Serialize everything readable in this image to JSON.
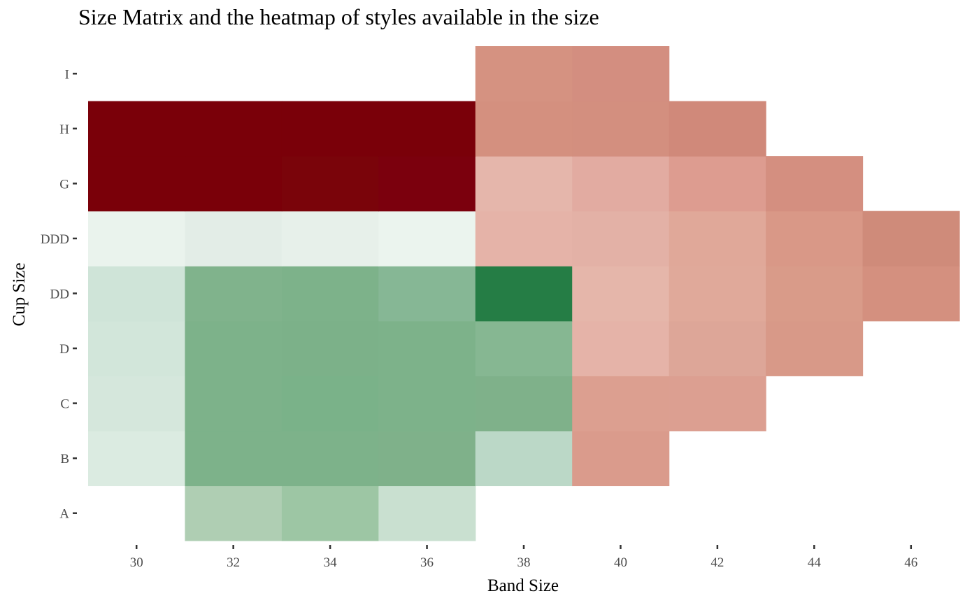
{
  "chart_data": {
    "type": "heatmap",
    "title": "Size Matrix and the heatmap of styles available in the size",
    "xlabel": "Band Size",
    "ylabel": "Cup Size",
    "x_categories": [
      30,
      32,
      34,
      36,
      38,
      40,
      42,
      44,
      46
    ],
    "y_categories": [
      "A",
      "B",
      "C",
      "D",
      "DD",
      "DDD",
      "G",
      "H",
      "I"
    ],
    "grid": false,
    "legend": "none",
    "colors": {
      "low_red": "#e6b6ab",
      "high_red": "#7a0009",
      "low_green": "#ecf4ee",
      "high_green": "#257d45"
    },
    "cells": [
      {
        "band": 32,
        "cup": "A",
        "color": "#afceb3"
      },
      {
        "band": 34,
        "cup": "A",
        "color": "#9dc6a4"
      },
      {
        "band": 36,
        "cup": "A",
        "color": "#c9e0d0"
      },
      {
        "band": 30,
        "cup": "B",
        "color": "#dbebe1"
      },
      {
        "band": 32,
        "cup": "B",
        "color": "#7db28a"
      },
      {
        "band": 34,
        "cup": "B",
        "color": "#7db28a"
      },
      {
        "band": 36,
        "cup": "B",
        "color": "#7fb18a"
      },
      {
        "band": 38,
        "cup": "B",
        "color": "#bbd8c7"
      },
      {
        "band": 40,
        "cup": "B",
        "color": "#da9b8c"
      },
      {
        "band": 30,
        "cup": "C",
        "color": "#d5e7dc"
      },
      {
        "band": 32,
        "cup": "C",
        "color": "#7db28a"
      },
      {
        "band": 34,
        "cup": "C",
        "color": "#7ab289"
      },
      {
        "band": 36,
        "cup": "C",
        "color": "#7db28a"
      },
      {
        "band": 38,
        "cup": "C",
        "color": "#7fb18a"
      },
      {
        "band": 40,
        "cup": "C",
        "color": "#dc9f90"
      },
      {
        "band": 42,
        "cup": "C",
        "color": "#dc9f91"
      },
      {
        "band": 30,
        "cup": "D",
        "color": "#d2e6da"
      },
      {
        "band": 32,
        "cup": "D",
        "color": "#7db28a"
      },
      {
        "band": 34,
        "cup": "D",
        "color": "#7cb189"
      },
      {
        "band": 36,
        "cup": "D",
        "color": "#7db28a"
      },
      {
        "band": 38,
        "cup": "D",
        "color": "#86b792"
      },
      {
        "band": 40,
        "cup": "D",
        "color": "#e5b3a8"
      },
      {
        "band": 42,
        "cup": "D",
        "color": "#dda698"
      },
      {
        "band": 44,
        "cup": "D",
        "color": "#d89988"
      },
      {
        "band": 30,
        "cup": "DD",
        "color": "#cfe4d8"
      },
      {
        "band": 32,
        "cup": "DD",
        "color": "#80b38c"
      },
      {
        "band": 34,
        "cup": "DD",
        "color": "#7db28a"
      },
      {
        "band": 36,
        "cup": "DD",
        "color": "#86b795"
      },
      {
        "band": 38,
        "cup": "DD",
        "color": "#257d45"
      },
      {
        "band": 40,
        "cup": "DD",
        "color": "#e5b6aa"
      },
      {
        "band": 42,
        "cup": "DD",
        "color": "#e0a99a"
      },
      {
        "band": 44,
        "cup": "DD",
        "color": "#d99b89"
      },
      {
        "band": 46,
        "cup": "DD",
        "color": "#d4907f"
      },
      {
        "band": 30,
        "cup": "DDD",
        "color": "#eaf3ed"
      },
      {
        "band": 32,
        "cup": "DDD",
        "color": "#e3ede7"
      },
      {
        "band": 34,
        "cup": "DDD",
        "color": "#e7f0ea"
      },
      {
        "band": 36,
        "cup": "DDD",
        "color": "#ebf4ee"
      },
      {
        "band": 38,
        "cup": "DDD",
        "color": "#e5b3a8"
      },
      {
        "band": 40,
        "cup": "DDD",
        "color": "#e3b1a6"
      },
      {
        "band": 42,
        "cup": "DDD",
        "color": "#e0a899"
      },
      {
        "band": 44,
        "cup": "DDD",
        "color": "#d99887"
      },
      {
        "band": 46,
        "cup": "DDD",
        "color": "#cf8b7a"
      },
      {
        "band": 30,
        "cup": "G",
        "color": "#7a0009"
      },
      {
        "band": 32,
        "cup": "G",
        "color": "#7a0009"
      },
      {
        "band": 34,
        "cup": "G",
        "color": "#7a040a"
      },
      {
        "band": 36,
        "cup": "G",
        "color": "#7b000d"
      },
      {
        "band": 38,
        "cup": "G",
        "color": "#e5b6ab"
      },
      {
        "band": 40,
        "cup": "G",
        "color": "#e2aba1"
      },
      {
        "band": 42,
        "cup": "G",
        "color": "#dd9c90"
      },
      {
        "band": 44,
        "cup": "G",
        "color": "#d48f80"
      },
      {
        "band": 30,
        "cup": "H",
        "color": "#7a0009"
      },
      {
        "band": 32,
        "cup": "H",
        "color": "#7a0009"
      },
      {
        "band": 34,
        "cup": "H",
        "color": "#7a0009"
      },
      {
        "band": 36,
        "cup": "H",
        "color": "#7a0009"
      },
      {
        "band": 38,
        "cup": "H",
        "color": "#d4907f"
      },
      {
        "band": 40,
        "cup": "H",
        "color": "#d38f7f"
      },
      {
        "band": 42,
        "cup": "H",
        "color": "#d0897a"
      },
      {
        "band": 38,
        "cup": "I",
        "color": "#d59281"
      },
      {
        "band": 40,
        "cup": "I",
        "color": "#d38e80"
      }
    ]
  }
}
